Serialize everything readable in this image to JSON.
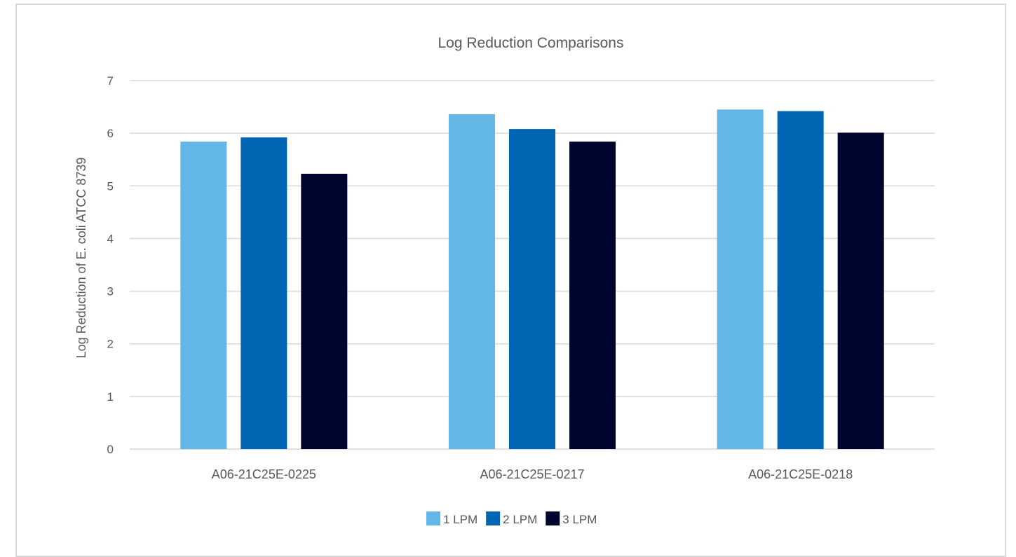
{
  "chart_data": {
    "type": "bar",
    "title": "Log Reduction Comparisons",
    "xlabel": "",
    "ylabel": "Log Reduction of E. coli ATCC 8739",
    "categories": [
      "A06-21C25E-0225",
      "A06-21C25E-0217",
      "A06-21C25E-0218"
    ],
    "series": [
      {
        "name": "1 LPM",
        "color": "#63b7e6",
        "values": [
          5.84,
          6.36,
          6.45
        ]
      },
      {
        "name": "2 LPM",
        "color": "#0066b3",
        "values": [
          5.92,
          6.08,
          6.42
        ]
      },
      {
        "name": "3 LPM",
        "color": "#000530",
        "values": [
          5.23,
          5.84,
          6.01
        ]
      }
    ],
    "ylim": [
      0,
      7
    ],
    "yticks": [
      0,
      1,
      2,
      3,
      4,
      5,
      6,
      7
    ],
    "grid": true,
    "legend_position": "bottom"
  }
}
